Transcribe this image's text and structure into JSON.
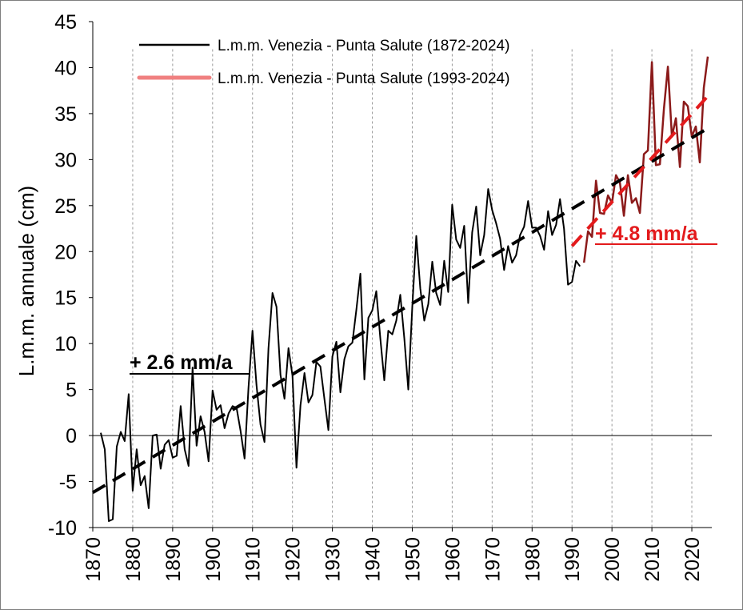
{
  "chart_data": {
    "type": "line",
    "ylabel": "L.m.m. annuale (cm)",
    "xlabel": "",
    "xlim": [
      1870,
      2025
    ],
    "ylim": [
      -10,
      45
    ],
    "x_ticks": [
      1870,
      1880,
      1890,
      1900,
      1910,
      1920,
      1930,
      1940,
      1950,
      1960,
      1970,
      1980,
      1990,
      2000,
      2010,
      2020
    ],
    "y_ticks": [
      -10,
      -5,
      0,
      5,
      10,
      15,
      20,
      25,
      30,
      35,
      40,
      45
    ],
    "grid": "vertical dashed",
    "legend_position": "top-left",
    "series": [
      {
        "name": "L.m.m. Venezia - Punta Salute (1872-2024)",
        "color": "#000000",
        "x": [
          1872,
          1873,
          1874,
          1875,
          1876,
          1877,
          1878,
          1879,
          1880,
          1881,
          1882,
          1883,
          1884,
          1885,
          1886,
          1887,
          1888,
          1889,
          1890,
          1891,
          1892,
          1893,
          1894,
          1895,
          1896,
          1897,
          1898,
          1899,
          1900,
          1901,
          1902,
          1903,
          1904,
          1905,
          1906,
          1907,
          1908,
          1909,
          1910,
          1911,
          1912,
          1913,
          1914,
          1915,
          1916,
          1917,
          1918,
          1919,
          1920,
          1921,
          1922,
          1923,
          1924,
          1925,
          1926,
          1927,
          1928,
          1929,
          1930,
          1931,
          1932,
          1933,
          1934,
          1935,
          1936,
          1937,
          1938,
          1939,
          1940,
          1941,
          1942,
          1943,
          1944,
          1945,
          1946,
          1947,
          1948,
          1949,
          1950,
          1951,
          1952,
          1953,
          1954,
          1955,
          1956,
          1957,
          1958,
          1959,
          1960,
          1961,
          1962,
          1963,
          1964,
          1965,
          1966,
          1967,
          1968,
          1969,
          1970,
          1971,
          1972,
          1973,
          1974,
          1975,
          1976,
          1977,
          1978,
          1979,
          1980,
          1981,
          1982,
          1983,
          1984,
          1985,
          1986,
          1987,
          1988,
          1989,
          1990,
          1991,
          1992
        ],
        "values": [
          0.3,
          -1.5,
          -9.3,
          -9.1,
          -1.2,
          0.4,
          -0.6,
          4.5,
          -6,
          -1.5,
          -5.4,
          -4.4,
          -7.9,
          0,
          0.1,
          -3.6,
          -1,
          -0.5,
          -2.4,
          -2.2,
          3.2,
          -1.5,
          -3.3,
          7.4,
          -1.1,
          2.1,
          0.4,
          -2.8,
          4.9,
          2.8,
          3.3,
          0.8,
          2.4,
          3.2,
          3,
          0.5,
          -2.5,
          5.2,
          11.4,
          5.5,
          1.2,
          -0.7,
          9.5,
          15.5,
          14,
          6.6,
          4,
          9.5,
          6.5,
          -3.5,
          3.3,
          6.8,
          3.6,
          4.4,
          8,
          7.5,
          4,
          0.6,
          8.6,
          10.2,
          4.7,
          8.3,
          9.7,
          10.1,
          13.7,
          17.6,
          6.1,
          12.8,
          13.6,
          15.7,
          10.6,
          6,
          11.4,
          11,
          12.5,
          15.3,
          10.6,
          5,
          14,
          21.7,
          16,
          12.5,
          14.3,
          18.9,
          15.5,
          14.2,
          19,
          15.6,
          25.1,
          21.3,
          20.4,
          22.8,
          14.4,
          22.1,
          24.9,
          19.6,
          21.8,
          26.8,
          24.5,
          23.1,
          21.4,
          18,
          20.6,
          18.8,
          19.6,
          21.8,
          22.7,
          25.5,
          22.6,
          22.6,
          21.7,
          20.2,
          24.4,
          21.8,
          22.9,
          25.7,
          22.5,
          16.4,
          16.7,
          19,
          18.4
        ]
      },
      {
        "name": "L.m.m. Venezia - Punta Salute (1993-2024)",
        "color": "#8b1a1a",
        "x": [
          1993,
          1994,
          1995,
          1996,
          1997,
          1998,
          1999,
          2000,
          2001,
          2002,
          2003,
          2004,
          2005,
          2006,
          2007,
          2008,
          2009,
          2010,
          2011,
          2012,
          2013,
          2014,
          2015,
          2016,
          2017,
          2018,
          2019,
          2020,
          2021,
          2022,
          2023,
          2024
        ],
        "values": [
          18.8,
          22.2,
          21.6,
          27.7,
          24.2,
          24.1,
          26.1,
          25.3,
          28.3,
          27.5,
          23.9,
          28.3,
          25.3,
          25.8,
          24.2,
          30.6,
          31,
          40.6,
          29.4,
          29.5,
          35.5,
          40.1,
          32.5,
          34.5,
          29.2,
          36.3,
          35.8,
          32.5,
          33.6,
          29.7,
          37.8,
          41.2
        ]
      }
    ],
    "trendlines": [
      {
        "label": "+ 2.6 mm/a",
        "color": "#000000",
        "x": [
          1870,
          2024
        ],
        "y": [
          -6.2,
          33.4
        ]
      },
      {
        "label": "+ 4.8 mm/a",
        "color": "#e31a1c",
        "x": [
          1990,
          2024
        ],
        "y": [
          20.6,
          36.9
        ]
      }
    ],
    "annotations": [
      {
        "text": "+ 2.6 mm/a",
        "color": "#000000"
      },
      {
        "text": "+ 4.8 mm/a",
        "color": "#e31a1c"
      }
    ],
    "colors": {
      "trend_black": "#000000",
      "trend_red": "#e31a1c",
      "legend_red": "#f08080",
      "recent_series": "#8b1a1a"
    }
  }
}
